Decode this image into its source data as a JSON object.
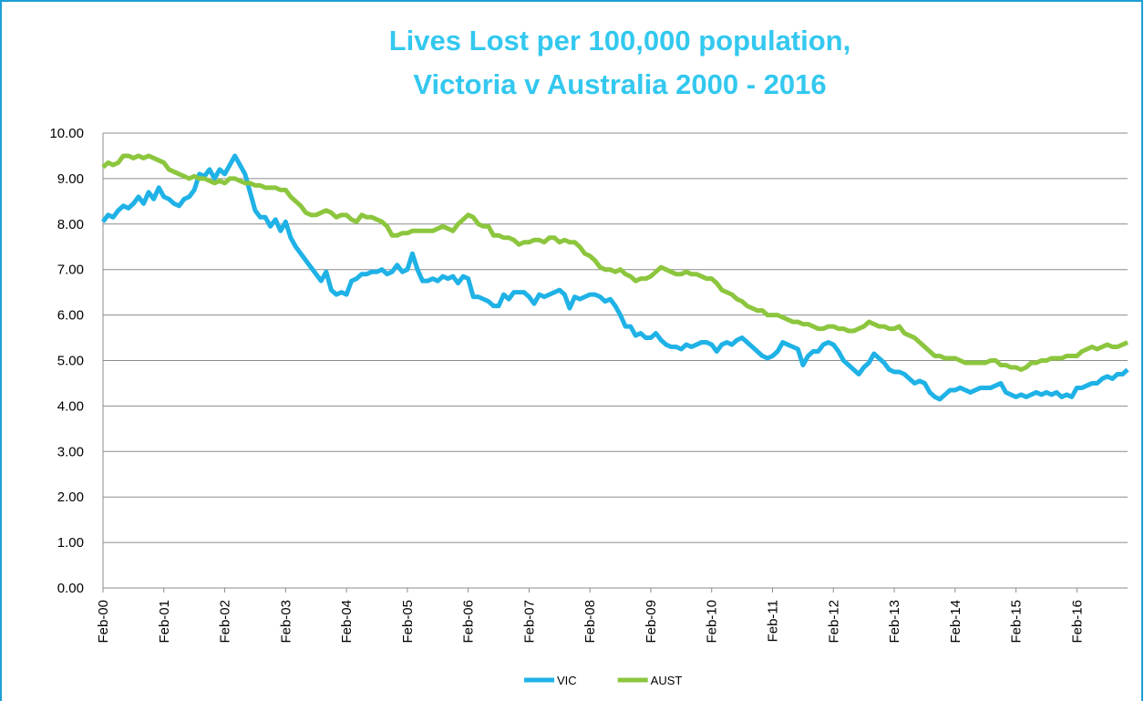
{
  "chart_data": {
    "type": "line",
    "title": [
      "Lives Lost per 100,000 population,",
      "Victoria v Australia 2000 - 2016"
    ],
    "categories": [
      "Feb-00",
      null,
      null,
      null,
      null,
      null,
      null,
      null,
      null,
      null,
      null,
      null,
      "Feb-01",
      null,
      null,
      null,
      null,
      null,
      null,
      null,
      null,
      null,
      null,
      null,
      "Feb-02",
      null,
      null,
      null,
      null,
      null,
      null,
      null,
      null,
      null,
      null,
      null,
      "Feb-03",
      null,
      null,
      null,
      null,
      null,
      null,
      null,
      null,
      null,
      null,
      null,
      "Feb-04",
      null,
      null,
      null,
      null,
      null,
      null,
      null,
      null,
      null,
      null,
      null,
      "Feb-05",
      null,
      null,
      null,
      null,
      null,
      null,
      null,
      null,
      null,
      null,
      null,
      "Feb-06",
      null,
      null,
      null,
      null,
      null,
      null,
      null,
      null,
      null,
      null,
      null,
      "Feb-07",
      null,
      null,
      null,
      null,
      null,
      null,
      null,
      null,
      null,
      null,
      null,
      "Feb-08",
      null,
      null,
      null,
      null,
      null,
      null,
      null,
      null,
      null,
      null,
      null,
      "Feb-09",
      null,
      null,
      null,
      null,
      null,
      null,
      null,
      null,
      null,
      null,
      null,
      "Feb-10",
      null,
      null,
      null,
      null,
      null,
      null,
      null,
      null,
      null,
      null,
      null,
      "Feb-11",
      null,
      null,
      null,
      null,
      null,
      null,
      null,
      null,
      null,
      null,
      null,
      "Feb-12",
      null,
      null,
      null,
      null,
      null,
      null,
      null,
      null,
      null,
      null,
      null,
      "Feb-13",
      null,
      null,
      null,
      null,
      null,
      null,
      null,
      null,
      null,
      null,
      null,
      "Feb-14",
      null,
      null,
      null,
      null,
      null,
      null,
      null,
      null,
      null,
      null,
      null,
      "Feb-15",
      null,
      null,
      null,
      null,
      null,
      null,
      null,
      null,
      null,
      null,
      null,
      "Feb-16",
      null,
      null,
      null,
      null,
      null,
      null,
      null,
      null,
      null,
      null
    ],
    "series": [
      {
        "name": "VIC",
        "color": "#1fb2e6",
        "values": [
          8.05,
          8.2,
          8.15,
          8.3,
          8.4,
          8.35,
          8.45,
          8.6,
          8.45,
          8.7,
          8.55,
          8.8,
          8.6,
          8.55,
          8.45,
          8.4,
          8.55,
          8.6,
          8.75,
          9.1,
          9.05,
          9.2,
          9.0,
          9.2,
          9.1,
          9.3,
          9.5,
          9.3,
          9.1,
          8.7,
          8.3,
          8.15,
          8.15,
          7.95,
          8.1,
          7.85,
          8.05,
          7.7,
          7.5,
          7.35,
          7.2,
          7.05,
          6.9,
          6.75,
          6.95,
          6.55,
          6.45,
          6.5,
          6.45,
          6.75,
          6.8,
          6.9,
          6.9,
          6.95,
          6.95,
          7.0,
          6.9,
          6.95,
          7.1,
          6.95,
          7.0,
          7.35,
          7.0,
          6.75,
          6.75,
          6.8,
          6.75,
          6.85,
          6.8,
          6.85,
          6.7,
          6.85,
          6.8,
          6.4,
          6.4,
          6.35,
          6.3,
          6.2,
          6.2,
          6.45,
          6.35,
          6.5,
          6.5,
          6.5,
          6.4,
          6.25,
          6.45,
          6.4,
          6.45,
          6.5,
          6.55,
          6.45,
          6.15,
          6.4,
          6.35,
          6.4,
          6.45,
          6.45,
          6.4,
          6.3,
          6.35,
          6.2,
          6.0,
          5.75,
          5.75,
          5.55,
          5.6,
          5.5,
          5.5,
          5.6,
          5.45,
          5.35,
          5.3,
          5.3,
          5.25,
          5.35,
          5.3,
          5.35,
          5.4,
          5.4,
          5.35,
          5.2,
          5.35,
          5.4,
          5.35,
          5.45,
          5.5,
          5.4,
          5.3,
          5.2,
          5.1,
          5.05,
          5.1,
          5.2,
          5.4,
          5.35,
          5.3,
          5.25,
          4.9,
          5.1,
          5.2,
          5.2,
          5.35,
          5.4,
          5.35,
          5.2,
          5.0,
          4.9,
          4.8,
          4.7,
          4.85,
          4.95,
          5.15,
          5.05,
          4.95,
          4.8,
          4.75,
          4.75,
          4.7,
          4.6,
          4.5,
          4.55,
          4.5,
          4.3,
          4.2,
          4.15,
          4.25,
          4.35,
          4.35,
          4.4,
          4.35,
          4.3,
          4.35,
          4.4,
          4.4,
          4.4,
          4.45,
          4.5,
          4.3,
          4.25,
          4.2,
          4.25,
          4.2,
          4.25,
          4.3,
          4.25,
          4.3,
          4.25,
          4.3,
          4.2,
          4.25,
          4.2,
          4.4,
          4.4,
          4.45,
          4.5,
          4.5,
          4.6,
          4.65,
          4.6,
          4.7,
          4.7,
          4.8
        ]
      },
      {
        "name": "AUST",
        "color": "#8cc63e",
        "values": [
          9.25,
          9.35,
          9.3,
          9.35,
          9.5,
          9.5,
          9.45,
          9.5,
          9.45,
          9.5,
          9.45,
          9.4,
          9.35,
          9.2,
          9.15,
          9.1,
          9.05,
          9.0,
          9.05,
          9.0,
          9.0,
          8.95,
          8.9,
          8.95,
          8.9,
          9.0,
          9.0,
          8.95,
          8.9,
          8.9,
          8.85,
          8.85,
          8.8,
          8.8,
          8.8,
          8.75,
          8.75,
          8.6,
          8.5,
          8.4,
          8.25,
          8.2,
          8.2,
          8.25,
          8.3,
          8.25,
          8.15,
          8.2,
          8.2,
          8.1,
          8.05,
          8.2,
          8.15,
          8.15,
          8.1,
          8.05,
          7.95,
          7.75,
          7.75,
          7.8,
          7.8,
          7.85,
          7.85,
          7.85,
          7.85,
          7.85,
          7.9,
          7.95,
          7.9,
          7.85,
          8.0,
          8.1,
          8.2,
          8.15,
          8.0,
          7.95,
          7.95,
          7.75,
          7.75,
          7.7,
          7.7,
          7.65,
          7.55,
          7.6,
          7.6,
          7.65,
          7.65,
          7.6,
          7.7,
          7.7,
          7.6,
          7.65,
          7.6,
          7.6,
          7.5,
          7.35,
          7.3,
          7.2,
          7.05,
          7.0,
          7.0,
          6.95,
          7.0,
          6.9,
          6.85,
          6.75,
          6.8,
          6.8,
          6.85,
          6.95,
          7.05,
          7.0,
          6.95,
          6.9,
          6.9,
          6.95,
          6.9,
          6.9,
          6.85,
          6.8,
          6.8,
          6.7,
          6.55,
          6.5,
          6.45,
          6.35,
          6.3,
          6.2,
          6.15,
          6.1,
          6.1,
          6.0,
          6.0,
          6.0,
          5.95,
          5.9,
          5.85,
          5.85,
          5.8,
          5.8,
          5.75,
          5.7,
          5.7,
          5.75,
          5.75,
          5.7,
          5.7,
          5.65,
          5.65,
          5.7,
          5.75,
          5.85,
          5.8,
          5.75,
          5.75,
          5.7,
          5.7,
          5.75,
          5.6,
          5.55,
          5.5,
          5.4,
          5.3,
          5.2,
          5.1,
          5.1,
          5.05,
          5.05,
          5.05,
          5.0,
          4.95,
          4.95,
          4.95,
          4.95,
          4.95,
          5.0,
          5.0,
          4.9,
          4.9,
          4.85,
          4.85,
          4.8,
          4.85,
          4.95,
          4.95,
          5.0,
          5.0,
          5.05,
          5.05,
          5.05,
          5.1,
          5.1,
          5.1,
          5.2,
          5.25,
          5.3,
          5.25,
          5.3,
          5.35,
          5.3,
          5.3,
          5.35,
          5.4
        ]
      }
    ],
    "ylim": [
      0,
      10
    ],
    "yticks": [
      {
        "value": 0,
        "label": "0.00"
      },
      {
        "value": 1,
        "label": "1.00"
      },
      {
        "value": 2,
        "label": "2.00"
      },
      {
        "value": 3,
        "label": "3.00"
      },
      {
        "value": 4,
        "label": "4.00"
      },
      {
        "value": 5,
        "label": "5.00"
      },
      {
        "value": 6,
        "label": "6.00"
      },
      {
        "value": 7,
        "label": "7.00"
      },
      {
        "value": 8,
        "label": "8.00"
      },
      {
        "value": 9,
        "label": "9.00"
      },
      {
        "value": 10,
        "label": "10.00"
      }
    ],
    "grid": true,
    "legend": "bottom"
  }
}
